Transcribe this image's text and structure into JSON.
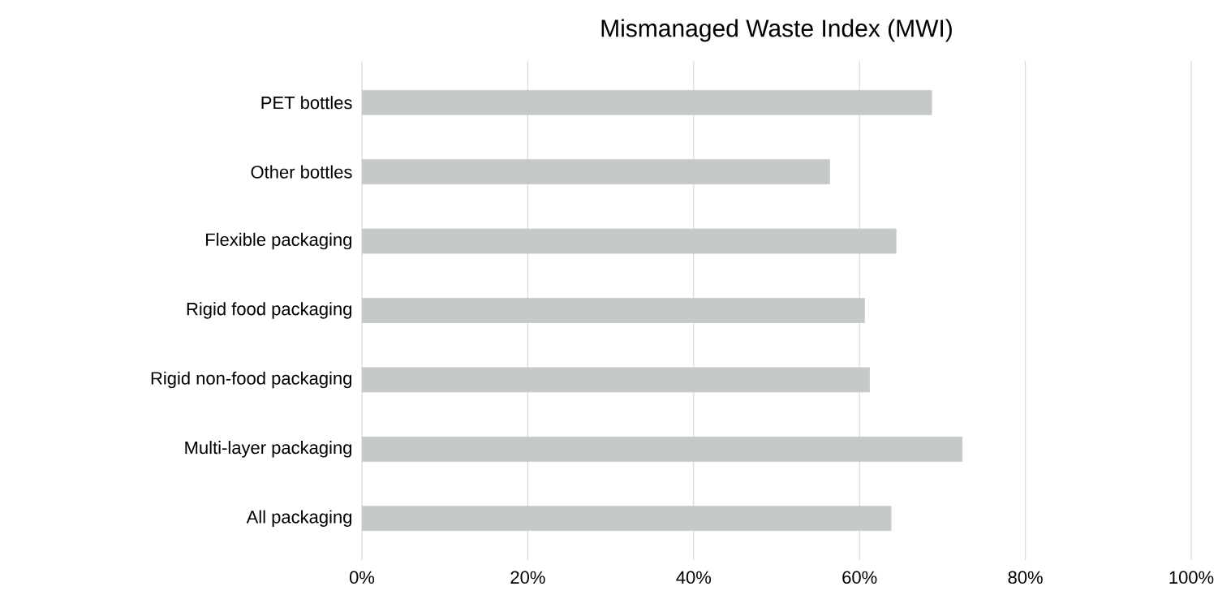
{
  "chart_data": {
    "type": "bar",
    "orientation": "horizontal",
    "title": "Mismanaged Waste Index (MWI)",
    "categories": [
      "PET bottles",
      "Other bottles",
      "Flexible packaging",
      "Rigid food packaging",
      "Rigid non-food packaging",
      "Multi-layer packaging",
      "All packaging"
    ],
    "values": [
      68.7,
      56.4,
      64.4,
      60.6,
      61.2,
      72.4,
      63.8
    ],
    "color": "#c5c9ca",
    "xlim": [
      0,
      100
    ],
    "xticks": [
      {
        "value": 0,
        "label": "0%"
      },
      {
        "value": 20,
        "label": "20%"
      },
      {
        "value": 40,
        "label": "40%"
      },
      {
        "value": 60,
        "label": "60%"
      },
      {
        "value": 80,
        "label": "80%"
      },
      {
        "value": 100,
        "label": "100%"
      }
    ],
    "grid": "x"
  }
}
